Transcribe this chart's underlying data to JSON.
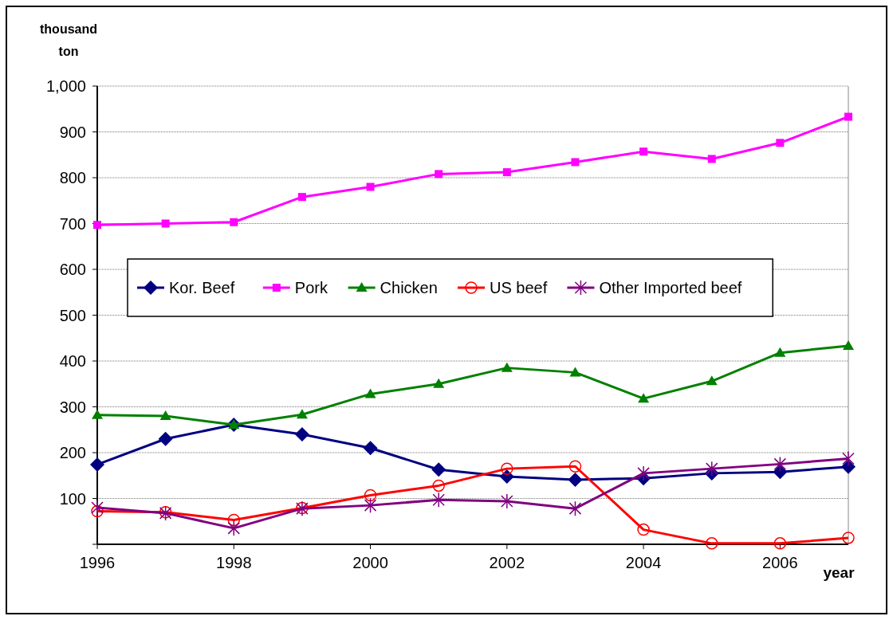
{
  "chart_data": {
    "type": "line",
    "ylabel": "thousand ton",
    "xlabel": "year",
    "x": [
      1996,
      1997,
      1998,
      1999,
      2000,
      2001,
      2002,
      2003,
      2004,
      2005,
      2006,
      2007
    ],
    "series": [
      {
        "name": "Kor. Beef",
        "color": "#000080",
        "marker": "diamond",
        "values": [
          174,
          230,
          261,
          240,
          210,
          163,
          148,
          141,
          144,
          155,
          158,
          169
        ]
      },
      {
        "name": "Pork",
        "color": "#ff00ff",
        "marker": "square",
        "values": [
          697,
          700,
          703,
          758,
          780,
          808,
          812,
          834,
          857,
          841,
          876,
          933
        ]
      },
      {
        "name": "Chicken",
        "color": "#008000",
        "marker": "triangle",
        "values": [
          282,
          280,
          261,
          283,
          328,
          350,
          385,
          375,
          318,
          356,
          418,
          433
        ]
      },
      {
        "name": "US beef",
        "color": "#ff0000",
        "marker": "circle",
        "values": [
          72,
          70,
          53,
          79,
          107,
          128,
          165,
          170,
          32,
          2,
          2,
          14
        ]
      },
      {
        "name": "Other Imported beef",
        "color": "#800080",
        "marker": "cross",
        "values": [
          80,
          68,
          35,
          78,
          85,
          97,
          94,
          78,
          155,
          165,
          175,
          187
        ]
      }
    ],
    "xlim": [
      1996,
      2007
    ],
    "xticks": [
      1996,
      1998,
      2000,
      2002,
      2004,
      2006
    ],
    "ylim": [
      0,
      1000
    ],
    "yticks": [
      {
        "value": 0,
        "label": null
      },
      100,
      200,
      300,
      400,
      500,
      600,
      700,
      800,
      900,
      {
        "value": 1000,
        "label": "1,000"
      }
    ],
    "grid": "y",
    "legend": "left",
    "line_style": "solid"
  }
}
